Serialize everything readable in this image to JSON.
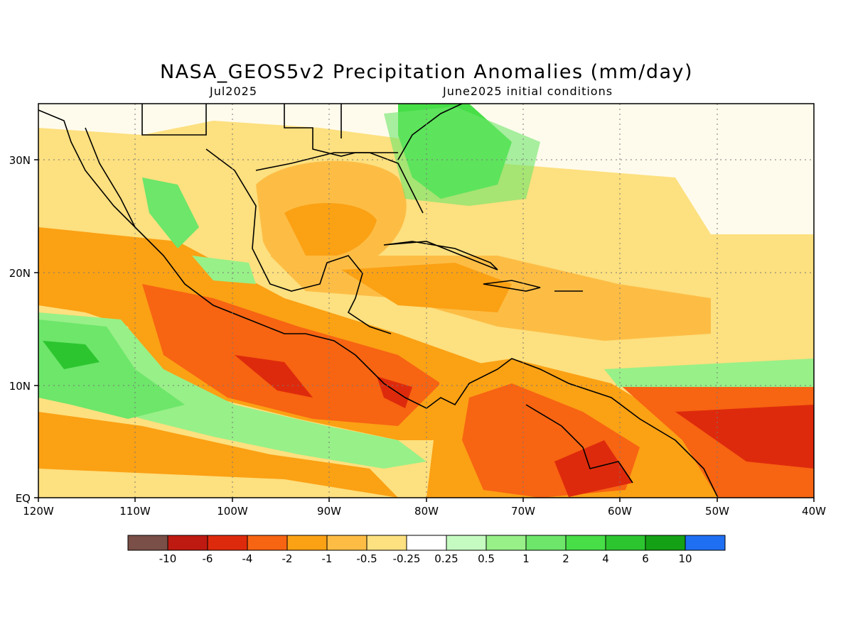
{
  "title": "NASA_GEOS5v2 Precipitation Anomalies (mm/day)",
  "subtitle_left": "Jul2025",
  "subtitle_right": "June2025 initial conditions",
  "map": {
    "lon_range": [
      -120,
      -40
    ],
    "lat_range": [
      0,
      35
    ],
    "gridlines": "dotted",
    "x_ticks": [
      "120W",
      "110W",
      "100W",
      "90W",
      "80W",
      "70W",
      "60W",
      "50W",
      "40W"
    ],
    "y_ticks": [
      "EQ",
      "10N",
      "20N",
      "30N"
    ]
  },
  "colorbar": {
    "colors": [
      "#7a4f47",
      "#be1a12",
      "#de2a0c",
      "#f76412",
      "#fba114",
      "#fdbd45",
      "#fde07f",
      "#ffffff",
      "#c5fbc1",
      "#98f088",
      "#6de66a",
      "#47de48",
      "#2dc52f",
      "#15a115",
      "#1f6ff2"
    ],
    "labels": [
      "-10",
      "-6",
      "-4",
      "-2",
      "-1",
      "-0.5",
      "-0.25",
      "0.25",
      "0.5",
      "1",
      "2",
      "4",
      "6",
      "10"
    ]
  }
}
